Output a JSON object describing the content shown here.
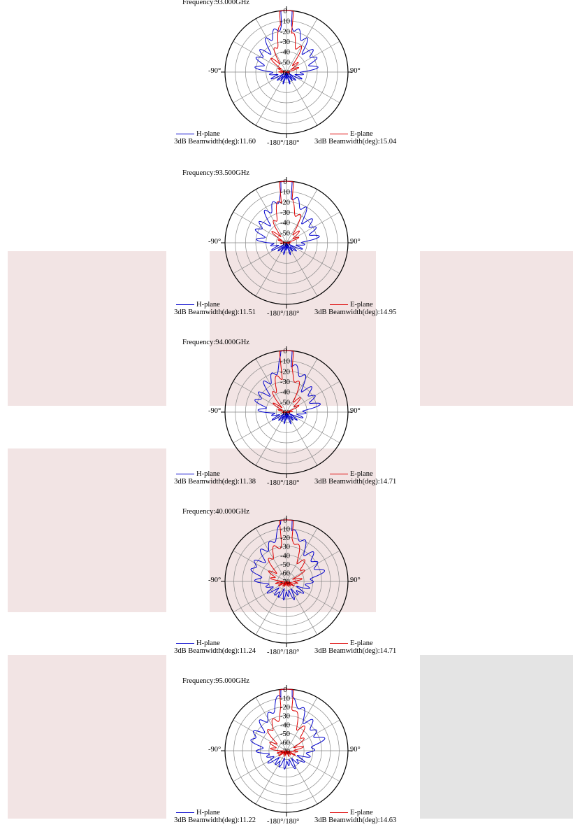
{
  "colors": {
    "h_plane": "#0000cc",
    "e_plane": "#dd0000",
    "grid": "#888888",
    "bg_pink": "#f2e4e4",
    "bg_gray": "#e4e4e4"
  },
  "labels": {
    "left": "-90°",
    "right": "90°",
    "bottom": "-180°/180°",
    "h_name": "H-plane",
    "e_name": "E-plane"
  },
  "chart_data": [
    {
      "type": "polar",
      "title": "Frequency:93.000GHz",
      "radial_ticks": [
        "0",
        "-10",
        "-20",
        "-30",
        "-40",
        "-50",
        "-60"
      ],
      "r_range": [
        -60,
        0
      ],
      "series": [
        {
          "name": "H-plane",
          "beamwidth_label": "3dB Beamwidth(deg):11.60",
          "beamwidth_deg": 11.6
        },
        {
          "name": "E-plane",
          "beamwidth_label": "3dB Beamwidth(deg):15.04",
          "beamwidth_deg": 15.04
        }
      ]
    },
    {
      "type": "polar",
      "title": "Frequency:93.500GHz",
      "radial_ticks": [
        "0",
        "-10",
        "-20",
        "-30",
        "-40",
        "-50",
        "-60"
      ],
      "r_range": [
        -60,
        0
      ],
      "series": [
        {
          "name": "H-plane",
          "beamwidth_label": "3dB Beamwidth(deg):11.51",
          "beamwidth_deg": 11.51
        },
        {
          "name": "E-plane",
          "beamwidth_label": "3dB Beamwidth(deg):14.95",
          "beamwidth_deg": 14.95
        }
      ]
    },
    {
      "type": "polar",
      "title": "Frequency:94.000GHz",
      "radial_ticks": [
        "0",
        "-10",
        "-20",
        "-30",
        "-40",
        "-50",
        "-60"
      ],
      "r_range": [
        -60,
        0
      ],
      "series": [
        {
          "name": "H-plane",
          "beamwidth_label": "3dB Beamwidth(deg):11.38",
          "beamwidth_deg": 11.38
        },
        {
          "name": "E-plane",
          "beamwidth_label": "3dB Beamwidth(deg):14.71",
          "beamwidth_deg": 14.71
        }
      ]
    },
    {
      "type": "polar",
      "title": "Frequency:40.000GHz",
      "radial_ticks": [
        "0",
        "-10",
        "-20",
        "-30",
        "-40",
        "-50",
        "-60",
        "-70"
      ],
      "r_range": [
        -70,
        0
      ],
      "series": [
        {
          "name": "H-plane",
          "beamwidth_label": "3dB Beamwidth(deg):11.24",
          "beamwidth_deg": 11.24
        },
        {
          "name": "E-plane",
          "beamwidth_label": "3dB Beamwidth(deg):14.71",
          "beamwidth_deg": 14.71
        }
      ]
    },
    {
      "type": "polar",
      "title": "Frequency:95.000GHz",
      "radial_ticks": [
        "0",
        "-10",
        "-20",
        "-30",
        "-40",
        "-50",
        "-60",
        "-70"
      ],
      "r_range": [
        -70,
        0
      ],
      "series": [
        {
          "name": "H-plane",
          "beamwidth_label": "3dB Beamwidth(deg):11.22",
          "beamwidth_deg": 11.22
        },
        {
          "name": "E-plane",
          "beamwidth_label": "3dB Beamwidth(deg):14.63",
          "beamwidth_deg": 14.63
        }
      ]
    }
  ]
}
